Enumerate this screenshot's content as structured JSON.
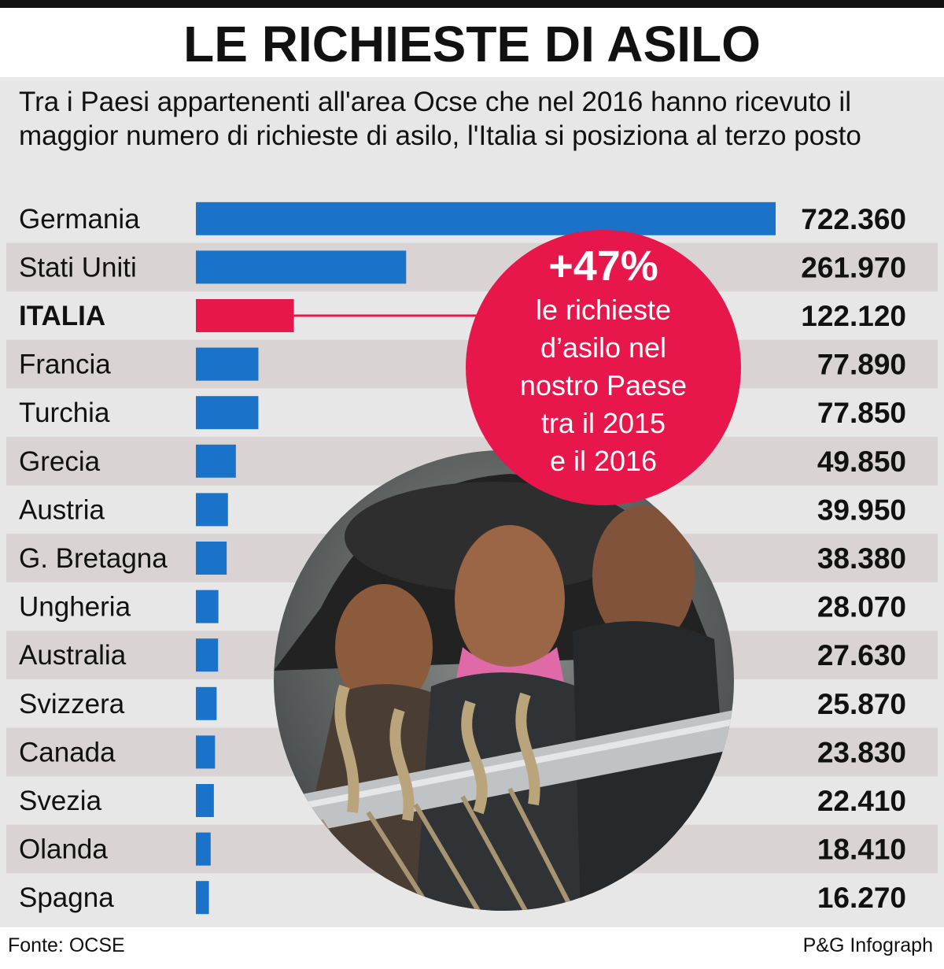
{
  "title": "LE RICHIESTE DI ASILO",
  "subtitle": "Tra i Paesi appartenenti all'area Ocse che nel 2016 hanno ricevuto il maggior numero di richieste di asilo, l'Italia si posiziona al terzo posto",
  "badge": {
    "percent": "+47%",
    "text": "le richieste\nd’asilo nel\nnostro Paese\ntra il 2015\ne il 2016"
  },
  "footer": {
    "source": "Fonte: OCSE",
    "credit": "P&G Infograph"
  },
  "colors": {
    "bar": "#1a73c8",
    "highlight": "#e7174c",
    "stripe": "#d9d3d3",
    "background": "#e7e7e7"
  },
  "chart_data": {
    "type": "bar",
    "orientation": "horizontal",
    "categories": [
      "Germania",
      "Stati Uniti",
      "ITALIA",
      "Francia",
      "Turchia",
      "Grecia",
      "Austria",
      "G. Bretagna",
      "Ungheria",
      "Australia",
      "Svizzera",
      "Canada",
      "Svezia",
      "Olanda",
      "Spagna"
    ],
    "values": [
      722360,
      261970,
      122120,
      77890,
      77850,
      49850,
      39950,
      38380,
      28070,
      27630,
      25870,
      23830,
      22410,
      18410,
      16270
    ],
    "value_labels": [
      "722.360",
      "261.970",
      "122.120",
      "77.890",
      "77.850",
      "49.850",
      "39.950",
      "38.380",
      "28.070",
      "27.630",
      "25.870",
      "23.830",
      "22.410",
      "18.410",
      "16.270"
    ],
    "highlight": "ITALIA",
    "xlim": [
      0,
      722360
    ]
  }
}
